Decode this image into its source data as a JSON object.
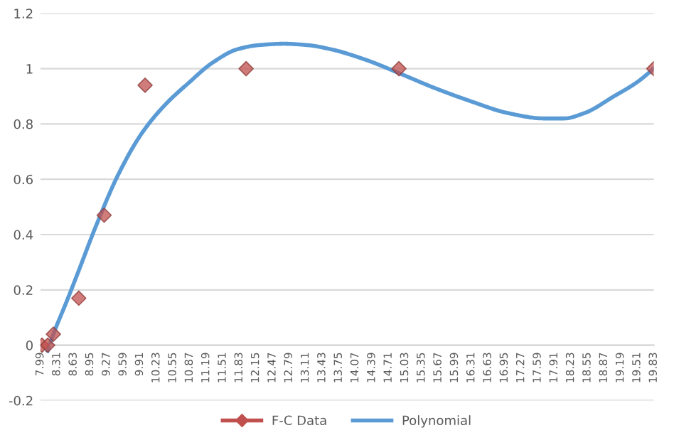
{
  "chart_data": {
    "type": "scatter",
    "xlim": [
      7.99,
      19.83
    ],
    "ylim": [
      -0.2,
      1.2
    ],
    "xticks": [
      7.99,
      8.31,
      8.63,
      8.95,
      9.27,
      9.59,
      9.91,
      10.23,
      10.55,
      10.87,
      11.19,
      11.51,
      11.83,
      12.15,
      12.47,
      12.79,
      13.11,
      13.43,
      13.75,
      14.07,
      14.39,
      14.71,
      15.03,
      15.35,
      15.67,
      15.99,
      16.31,
      16.63,
      16.95,
      17.27,
      17.59,
      17.91,
      18.23,
      18.55,
      18.87,
      19.19,
      19.51,
      19.83
    ],
    "yticks": [
      -0.2,
      0,
      0.2,
      0.4,
      0.6,
      0.8,
      1,
      1.2
    ],
    "grid": "y",
    "legend": "bottom",
    "series": [
      {
        "name": "F-C Data",
        "color": "#c0504d",
        "marker": "diamond",
        "x": [
          8.02,
          8.13,
          8.24,
          8.73,
          9.22,
          10.01,
          11.96,
          14.91,
          19.83
        ],
        "values": [
          0,
          0,
          0.04,
          0.17,
          0.47,
          0.94,
          1,
          1,
          1
        ]
      },
      {
        "name": "Polynomial",
        "type": "line",
        "color": "#5b9bd5",
        "marker": "none",
        "x": [
          8.13,
          8.24,
          8.5,
          8.73,
          9.06,
          9.5,
          9.96,
          10.4,
          10.86,
          11.3,
          11.79,
          12.2,
          12.69,
          13.15,
          13.6,
          14.3,
          14.96,
          15.6,
          16.33,
          17.0,
          17.7,
          18.1,
          18.5,
          19.06,
          19.5,
          19.83
        ],
        "values": [
          -0.02,
          0.04,
          0.16,
          0.27,
          0.43,
          0.62,
          0.77,
          0.87,
          0.95,
          1.02,
          1.07,
          1.085,
          1.09,
          1.085,
          1.07,
          1.03,
          0.98,
          0.93,
          0.88,
          0.84,
          0.82,
          0.82,
          0.84,
          0.9,
          0.95,
          1
        ]
      }
    ]
  }
}
